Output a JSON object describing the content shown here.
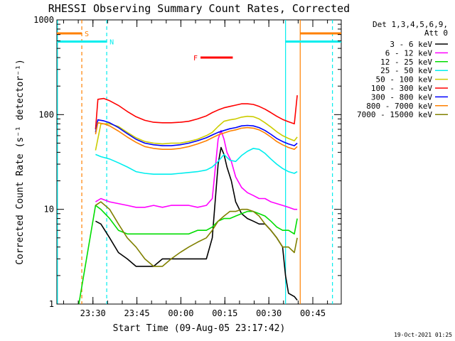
{
  "chart_data": {
    "type": "line",
    "title": "RHESSI Observing Summary Count Rates, Corrected",
    "xlabel": "Start Time (09-Aug-05 23:17:42)",
    "ylabel": "Corrected Count Rate (s⁻¹ detector⁻¹)",
    "y_scale": "log",
    "ylim": [
      1,
      1000
    ],
    "xlim_minutes_after_start": [
      0,
      97
    ],
    "y_ticks": [
      {
        "value": 1,
        "label": "1"
      },
      {
        "value": 10,
        "label": "10"
      },
      {
        "value": 100,
        "label": "100"
      },
      {
        "value": 1000,
        "label": "1000"
      }
    ],
    "x_ticks": [
      {
        "minutes": 12.3,
        "label": "23:30"
      },
      {
        "minutes": 27.3,
        "label": "23:45"
      },
      {
        "minutes": 42.3,
        "label": "00:00"
      },
      {
        "minutes": 57.3,
        "label": "00:15"
      },
      {
        "minutes": 72.3,
        "label": "00:30"
      },
      {
        "minutes": 87.3,
        "label": "00:45"
      }
    ],
    "legend_header": [
      "Det 1,3,4,5,6,9,",
      "Att 0"
    ],
    "legend_position": "right",
    "series": [
      {
        "name": "3 - 6 keV",
        "color": "#000000",
        "points": [
          [
            13.2,
            7.5
          ],
          [
            15,
            7
          ],
          [
            18,
            5
          ],
          [
            21,
            3.5
          ],
          [
            24,
            3
          ],
          [
            27,
            2.5
          ],
          [
            30,
            2.5
          ],
          [
            33,
            2.5
          ],
          [
            36,
            3
          ],
          [
            39,
            3
          ],
          [
            42,
            3
          ],
          [
            45,
            3
          ],
          [
            48,
            3
          ],
          [
            51,
            3
          ],
          [
            53,
            5
          ],
          [
            55,
            30
          ],
          [
            56,
            45
          ],
          [
            57,
            38
          ],
          [
            58,
            28
          ],
          [
            59.5,
            20
          ],
          [
            61,
            12
          ],
          [
            63,
            9
          ],
          [
            65,
            8
          ],
          [
            67,
            7.5
          ],
          [
            69,
            7
          ],
          [
            71,
            7
          ],
          [
            73,
            6
          ],
          [
            75,
            5
          ],
          [
            77,
            4
          ],
          [
            78,
            2
          ],
          [
            79,
            1.3
          ],
          [
            81,
            1.2
          ],
          [
            82,
            1.1
          ]
        ]
      },
      {
        "name": "6 - 12 keV",
        "color": "#ff00ff",
        "points": [
          [
            13.2,
            12
          ],
          [
            15,
            13
          ],
          [
            18,
            12
          ],
          [
            21,
            11.5
          ],
          [
            24,
            11
          ],
          [
            27,
            10.5
          ],
          [
            30,
            10.5
          ],
          [
            33,
            11
          ],
          [
            36,
            10.5
          ],
          [
            39,
            11
          ],
          [
            42,
            11
          ],
          [
            45,
            11
          ],
          [
            48,
            10.5
          ],
          [
            51,
            11
          ],
          [
            53,
            13
          ],
          [
            55,
            55
          ],
          [
            56,
            68
          ],
          [
            57,
            55
          ],
          [
            58,
            40
          ],
          [
            59.5,
            32
          ],
          [
            61,
            22
          ],
          [
            63,
            17
          ],
          [
            65,
            15
          ],
          [
            67,
            14
          ],
          [
            69,
            13
          ],
          [
            71,
            13
          ],
          [
            73,
            12
          ],
          [
            75,
            11.5
          ],
          [
            77,
            11
          ],
          [
            79,
            10.5
          ],
          [
            81,
            10
          ],
          [
            82,
            10
          ]
        ]
      },
      {
        "name": "12 - 25 keV",
        "color": "#00dd00",
        "points": [
          [
            7.5,
            1
          ],
          [
            13.2,
            11
          ],
          [
            15,
            10
          ],
          [
            18,
            8
          ],
          [
            21,
            6
          ],
          [
            24,
            5.5
          ],
          [
            27,
            5.5
          ],
          [
            30,
            5.5
          ],
          [
            33,
            5.5
          ],
          [
            36,
            5.5
          ],
          [
            39,
            5.5
          ],
          [
            42,
            5.5
          ],
          [
            45,
            5.5
          ],
          [
            48,
            6
          ],
          [
            51,
            6
          ],
          [
            53,
            6.5
          ],
          [
            55,
            7.5
          ],
          [
            57,
            8
          ],
          [
            59,
            8
          ],
          [
            61,
            8.5
          ],
          [
            63,
            9
          ],
          [
            65,
            9.5
          ],
          [
            67,
            9.5
          ],
          [
            69,
            9
          ],
          [
            71,
            8.5
          ],
          [
            73,
            7.5
          ],
          [
            75,
            6.5
          ],
          [
            77,
            6
          ],
          [
            79,
            6
          ],
          [
            81,
            5.5
          ],
          [
            82,
            8
          ]
        ]
      },
      {
        "name": "25 - 50 keV",
        "color": "#00eeee",
        "points": [
          [
            13.2,
            38
          ],
          [
            15,
            36
          ],
          [
            18,
            34
          ],
          [
            21,
            31
          ],
          [
            24,
            28
          ],
          [
            27,
            25
          ],
          [
            30,
            24
          ],
          [
            33,
            23.5
          ],
          [
            36,
            23.5
          ],
          [
            39,
            23.5
          ],
          [
            42,
            24
          ],
          [
            45,
            24.5
          ],
          [
            48,
            25
          ],
          [
            51,
            26
          ],
          [
            53,
            28
          ],
          [
            55,
            32
          ],
          [
            57,
            38
          ],
          [
            59,
            33
          ],
          [
            61,
            32
          ],
          [
            63,
            37
          ],
          [
            65,
            41
          ],
          [
            67,
            44
          ],
          [
            69,
            43
          ],
          [
            71,
            39
          ],
          [
            73,
            34
          ],
          [
            75,
            30
          ],
          [
            77,
            27
          ],
          [
            79,
            25
          ],
          [
            81,
            24
          ],
          [
            82,
            25
          ]
        ]
      },
      {
        "name": "50 - 100 keV",
        "color": "#cccc00",
        "points": [
          [
            13.2,
            42
          ],
          [
            15,
            80
          ],
          [
            18,
            80
          ],
          [
            21,
            75
          ],
          [
            24,
            65
          ],
          [
            27,
            57
          ],
          [
            30,
            52
          ],
          [
            33,
            50
          ],
          [
            36,
            49
          ],
          [
            39,
            50
          ],
          [
            42,
            50
          ],
          [
            45,
            52
          ],
          [
            48,
            55
          ],
          [
            51,
            60
          ],
          [
            53,
            65
          ],
          [
            55,
            75
          ],
          [
            57,
            85
          ],
          [
            59,
            88
          ],
          [
            61,
            90
          ],
          [
            63,
            94
          ],
          [
            65,
            96
          ],
          [
            67,
            95
          ],
          [
            69,
            90
          ],
          [
            71,
            82
          ],
          [
            73,
            74
          ],
          [
            75,
            66
          ],
          [
            77,
            60
          ],
          [
            79,
            56
          ],
          [
            81,
            53
          ],
          [
            82,
            58
          ]
        ]
      },
      {
        "name": "100 - 300 keV",
        "color": "#ff0000",
        "points": [
          [
            13.2,
            70
          ],
          [
            14,
            145
          ],
          [
            16,
            148
          ],
          [
            18,
            140
          ],
          [
            21,
            125
          ],
          [
            24,
            108
          ],
          [
            27,
            95
          ],
          [
            30,
            87
          ],
          [
            33,
            83
          ],
          [
            36,
            82
          ],
          [
            39,
            82
          ],
          [
            42,
            83
          ],
          [
            45,
            85
          ],
          [
            48,
            90
          ],
          [
            51,
            97
          ],
          [
            53,
            105
          ],
          [
            55,
            112
          ],
          [
            57,
            118
          ],
          [
            59,
            122
          ],
          [
            61,
            126
          ],
          [
            63,
            130
          ],
          [
            65,
            130
          ],
          [
            67,
            128
          ],
          [
            69,
            122
          ],
          [
            71,
            114
          ],
          [
            73,
            105
          ],
          [
            75,
            96
          ],
          [
            77,
            89
          ],
          [
            79,
            84
          ],
          [
            81,
            80
          ],
          [
            82,
            160
          ]
        ]
      },
      {
        "name": "300 - 800 keV",
        "color": "#0000ff",
        "points": [
          [
            13.2,
            65
          ],
          [
            14,
            88
          ],
          [
            16,
            86
          ],
          [
            18,
            82
          ],
          [
            21,
            73
          ],
          [
            24,
            63
          ],
          [
            27,
            55
          ],
          [
            30,
            50
          ],
          [
            33,
            48
          ],
          [
            36,
            47
          ],
          [
            39,
            47
          ],
          [
            42,
            48
          ],
          [
            45,
            50
          ],
          [
            48,
            53
          ],
          [
            51,
            57
          ],
          [
            53,
            61
          ],
          [
            55,
            65
          ],
          [
            57,
            68
          ],
          [
            59,
            71
          ],
          [
            61,
            73
          ],
          [
            63,
            76
          ],
          [
            65,
            77
          ],
          [
            67,
            76
          ],
          [
            69,
            73
          ],
          [
            71,
            68
          ],
          [
            73,
            62
          ],
          [
            75,
            56
          ],
          [
            77,
            52
          ],
          [
            79,
            49
          ],
          [
            81,
            47
          ],
          [
            82,
            50
          ]
        ]
      },
      {
        "name": "800 - 7000 keV",
        "color": "#ff8000",
        "points": [
          [
            13.2,
            62
          ],
          [
            14,
            82
          ],
          [
            16,
            80
          ],
          [
            18,
            76
          ],
          [
            21,
            67
          ],
          [
            24,
            58
          ],
          [
            27,
            51
          ],
          [
            30,
            46
          ],
          [
            33,
            44
          ],
          [
            36,
            43
          ],
          [
            39,
            43
          ],
          [
            42,
            44
          ],
          [
            45,
            46
          ],
          [
            48,
            49
          ],
          [
            51,
            53
          ],
          [
            53,
            57
          ],
          [
            55,
            61
          ],
          [
            57,
            64
          ],
          [
            59,
            67
          ],
          [
            61,
            69
          ],
          [
            63,
            72
          ],
          [
            65,
            73
          ],
          [
            67,
            72
          ],
          [
            69,
            69
          ],
          [
            71,
            64
          ],
          [
            73,
            58
          ],
          [
            75,
            52
          ],
          [
            77,
            48
          ],
          [
            79,
            45
          ],
          [
            81,
            43
          ],
          [
            82,
            46
          ]
        ]
      },
      {
        "name": "7000 - 15000 keV",
        "color": "#808000",
        "points": [
          [
            13.2,
            11
          ],
          [
            15,
            12
          ],
          [
            18,
            10
          ],
          [
            21,
            7
          ],
          [
            24,
            5
          ],
          [
            27,
            4
          ],
          [
            30,
            3
          ],
          [
            33,
            2.5
          ],
          [
            36,
            2.5
          ],
          [
            39,
            3
          ],
          [
            42,
            3.5
          ],
          [
            45,
            4
          ],
          [
            48,
            4.5
          ],
          [
            51,
            5
          ],
          [
            53,
            6
          ],
          [
            55,
            7.5
          ],
          [
            57,
            8.5
          ],
          [
            59,
            9.5
          ],
          [
            61,
            9.5
          ],
          [
            63,
            10
          ],
          [
            65,
            10
          ],
          [
            67,
            9.5
          ],
          [
            69,
            8.5
          ],
          [
            71,
            7
          ],
          [
            73,
            6
          ],
          [
            75,
            5
          ],
          [
            77,
            4
          ],
          [
            79,
            4
          ],
          [
            81,
            3.5
          ],
          [
            82,
            5
          ]
        ]
      }
    ],
    "annotations": [
      {
        "label": "S",
        "color": "#ff8000",
        "level": 720,
        "x_start": 0,
        "x_end": 8.5,
        "x_start2": 83,
        "x_end2": 97
      },
      {
        "label": "N",
        "color": "#00eeee",
        "level": 590,
        "x_start": 0,
        "x_end": 17,
        "x_start2": 78,
        "x_end2": 97
      },
      {
        "label": "F",
        "color": "#ff0000",
        "level": 400,
        "x_start": 49,
        "x_end": 60
      }
    ],
    "vertical_markers": [
      {
        "minutes": 8.5,
        "color": "#ff8000",
        "style": "dashed"
      },
      {
        "minutes": 17,
        "color": "#00eeee",
        "style": "dashed"
      },
      {
        "minutes": 0.2,
        "color": "#00eeee",
        "style": "solid"
      },
      {
        "minutes": 78,
        "color": "#00eeee",
        "style": "solid"
      },
      {
        "minutes": 83,
        "color": "#ff8000",
        "style": "solid"
      },
      {
        "minutes": 94,
        "color": "#00eeee",
        "style": "dashed"
      }
    ],
    "footer_timestamp": "19-Oct-2021 01:25"
  }
}
